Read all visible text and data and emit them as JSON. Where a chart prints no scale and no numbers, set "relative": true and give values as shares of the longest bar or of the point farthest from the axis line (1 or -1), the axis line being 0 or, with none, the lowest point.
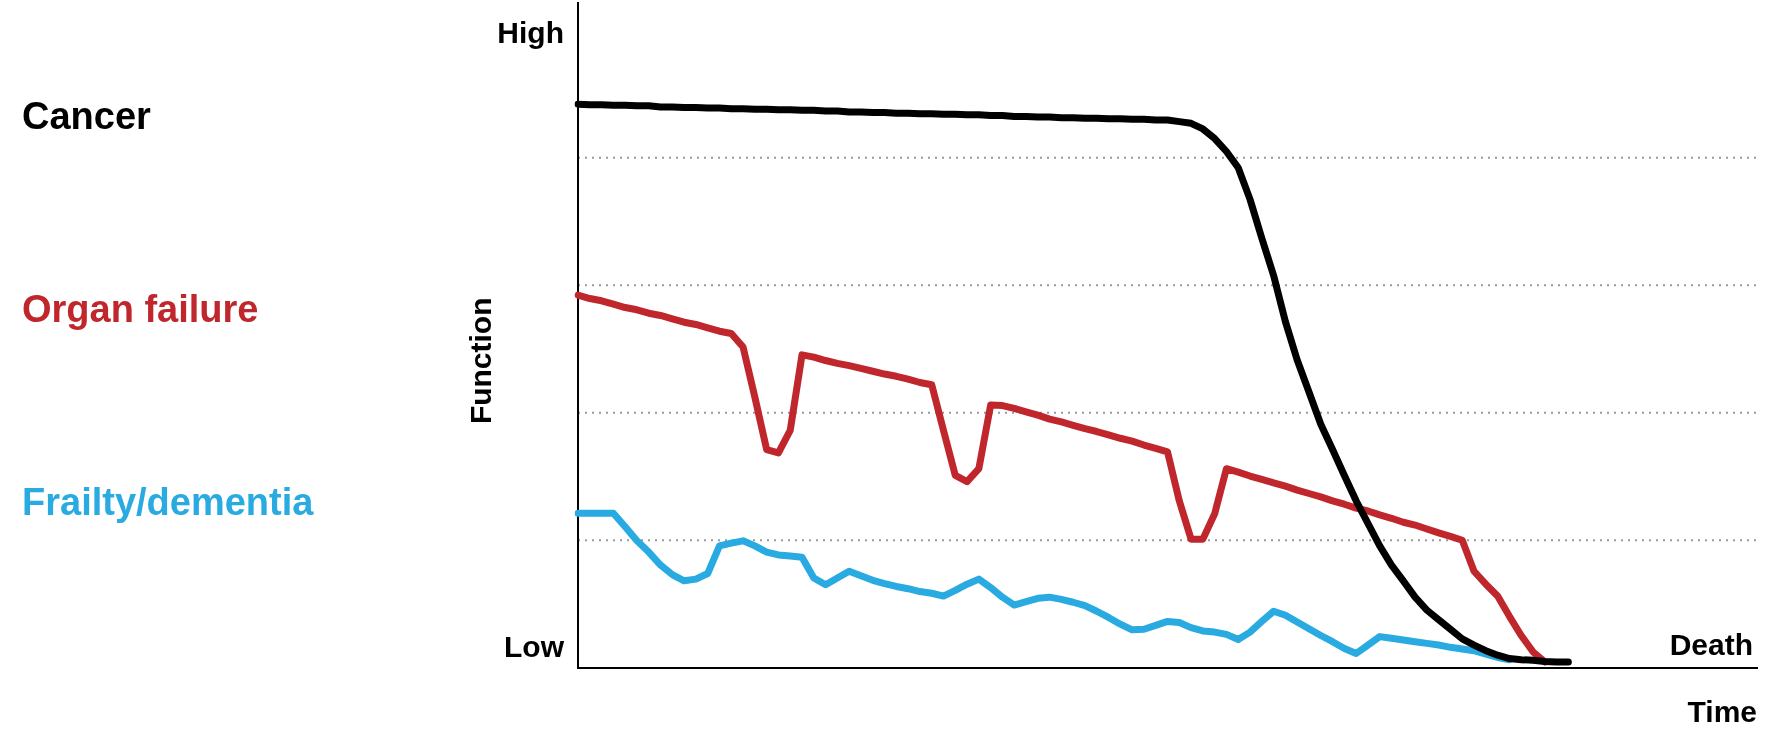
{
  "chart_data": {
    "type": "line",
    "ylabel": "Function",
    "xlabel": "Time",
    "annotations": [
      "High",
      "Low",
      "Death"
    ],
    "relative": true,
    "categories": [
      null,
      null,
      null,
      null,
      null,
      null,
      null,
      null,
      null,
      null,
      null,
      null,
      null,
      null,
      null,
      null,
      null,
      null,
      null,
      null,
      null,
      null,
      null,
      null,
      null,
      null,
      null,
      null,
      null,
      null,
      null,
      null,
      null,
      null,
      null,
      null,
      null,
      null,
      null,
      null,
      null,
      null,
      null,
      null,
      null,
      null,
      null,
      null,
      null,
      null,
      null,
      null,
      null,
      null,
      null,
      null,
      null,
      null,
      null,
      null,
      null,
      null,
      null,
      null,
      null,
      null,
      null,
      null,
      null,
      null,
      null,
      null,
      null,
      null,
      null,
      null,
      null,
      null,
      null,
      null,
      null,
      null,
      null,
      null,
      null,
      null,
      null,
      null,
      null,
      null,
      null,
      null,
      null,
      null,
      null,
      null,
      null,
      null,
      null,
      null,
      null
    ],
    "grid": "y",
    "marker": "none",
    "line_style": "solid",
    "series": [
      {
        "name": "Cancer",
        "color": "#000000",
        "values": [
          1.0,
          0.999,
          0.999,
          0.998,
          0.998,
          0.997,
          0.997,
          0.995,
          0.995,
          0.994,
          0.994,
          0.993,
          0.993,
          0.992,
          0.992,
          0.991,
          0.991,
          0.99,
          0.99,
          0.989,
          0.989,
          0.988,
          0.988,
          0.986,
          0.986,
          0.985,
          0.985,
          0.984,
          0.984,
          0.983,
          0.983,
          0.982,
          0.982,
          0.981,
          0.981,
          0.98,
          0.98,
          0.978,
          0.978,
          0.977,
          0.977,
          0.976,
          0.976,
          0.975,
          0.975,
          0.974,
          0.974,
          0.973,
          0.973,
          0.972,
          0.972,
          0.969,
          0.966,
          0.956,
          0.939,
          0.916,
          0.887,
          0.831,
          0.762,
          0.696,
          0.614,
          0.546,
          0.489,
          0.432,
          0.387,
          0.341,
          0.296,
          0.256,
          0.216,
          0.182,
          0.154,
          0.125,
          0.102,
          0.085,
          0.068,
          0.051,
          0.04,
          0.03,
          0.022,
          0.016,
          0.014,
          0.013,
          0.011,
          0.01,
          0.01,
          null,
          null,
          null,
          null,
          null,
          null,
          null,
          null,
          null,
          null,
          null,
          null,
          null,
          null,
          null,
          null
        ]
      },
      {
        "name": "Organ failure",
        "color": "#c0272d",
        "values": [
          0.661,
          0.655,
          0.651,
          0.645,
          0.639,
          0.635,
          0.629,
          0.625,
          0.619,
          0.613,
          0.609,
          0.603,
          0.597,
          0.593,
          0.569,
          0.48,
          0.387,
          0.381,
          0.421,
          0.555,
          0.551,
          0.545,
          0.54,
          0.536,
          0.531,
          0.526,
          0.521,
          0.517,
          0.512,
          0.506,
          0.502,
          0.421,
          0.341,
          0.33,
          0.353,
          0.466,
          0.465,
          0.46,
          0.454,
          0.448,
          0.441,
          0.436,
          0.43,
          0.424,
          0.419,
          0.413,
          0.407,
          0.402,
          0.395,
          0.389,
          0.383,
          0.296,
          0.228,
          0.228,
          0.273,
          0.353,
          0.347,
          0.34,
          0.334,
          0.328,
          0.322,
          0.315,
          0.309,
          0.303,
          0.296,
          0.29,
          0.283,
          0.278,
          0.271,
          0.265,
          0.258,
          0.253,
          0.246,
          0.239,
          0.233,
          0.226,
          0.171,
          0.148,
          0.127,
          0.091,
          0.057,
          0.028,
          0.01,
          null,
          null,
          null,
          null,
          null,
          null,
          null,
          null,
          null,
          null,
          null,
          null,
          null,
          null,
          null,
          null,
          null,
          null
        ]
      },
      {
        "name": "Frailty/dementia",
        "color": "#29abe2",
        "values": [
          0.274,
          0.274,
          0.274,
          0.274,
          0.25,
          0.225,
          0.205,
          0.182,
          0.165,
          0.154,
          0.157,
          0.167,
          0.216,
          0.221,
          0.225,
          0.216,
          0.205,
          0.2,
          0.198,
          0.196,
          0.159,
          0.147,
          0.159,
          0.171,
          0.163,
          0.155,
          0.149,
          0.144,
          0.14,
          0.135,
          0.132,
          0.127,
          0.137,
          0.148,
          0.157,
          0.142,
          0.125,
          0.111,
          0.117,
          0.123,
          0.125,
          0.121,
          0.116,
          0.11,
          0.1,
          0.089,
          0.077,
          0.067,
          0.068,
          0.075,
          0.082,
          0.08,
          0.071,
          0.065,
          0.063,
          0.059,
          0.05,
          0.063,
          0.082,
          0.1,
          0.093,
          0.081,
          0.069,
          0.057,
          0.046,
          0.034,
          0.025,
          0.04,
          0.055,
          0.052,
          0.049,
          0.046,
          0.043,
          0.04,
          0.036,
          0.033,
          0.03,
          0.024,
          0.018,
          0.014,
          null,
          null,
          null,
          null,
          null,
          null,
          null,
          null,
          null,
          null,
          null,
          null,
          null,
          null,
          null,
          null,
          null,
          null,
          null,
          null,
          null
        ]
      }
    ]
  }
}
